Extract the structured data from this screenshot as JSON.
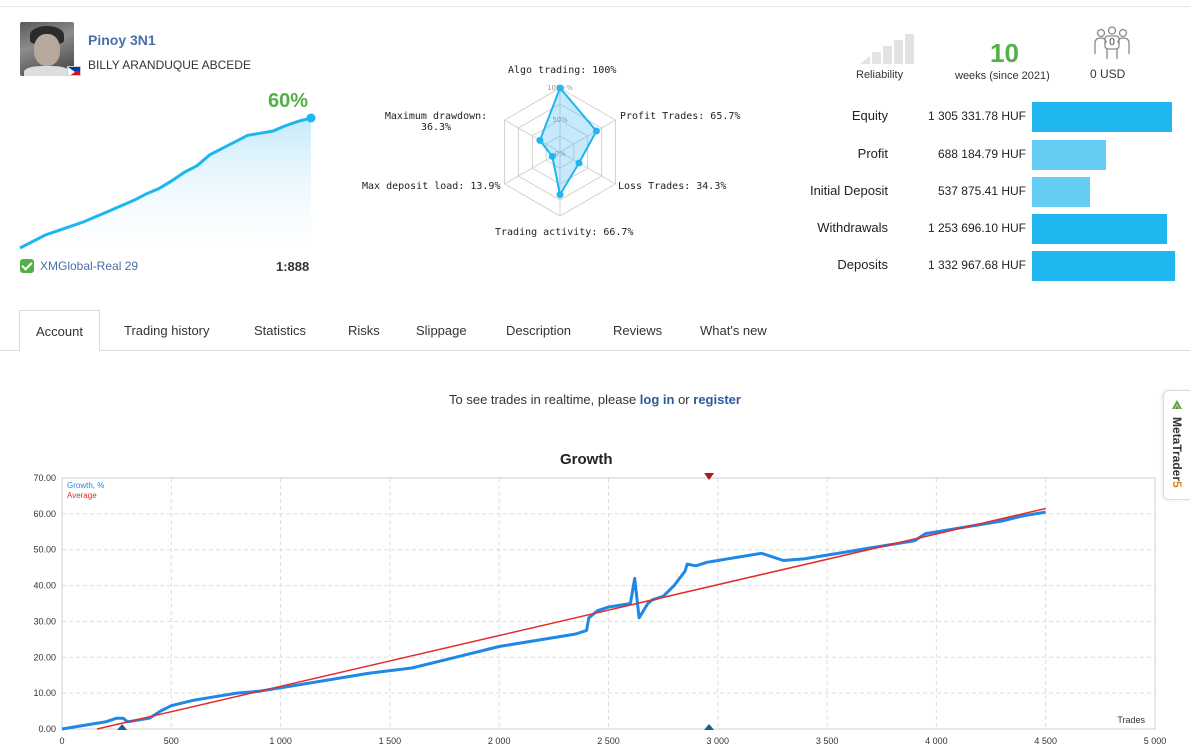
{
  "profile": {
    "signal_name": "Pinoy 3N1",
    "author": "BILLY ARANDUQUE ABCEDE",
    "growth_percent": "60%",
    "broker": "XMGlobal-Real 29",
    "leverage": "1:888",
    "mini_chart_values": [
      0,
      3,
      6,
      8,
      10,
      12,
      14.5,
      17,
      19.5,
      22,
      25,
      27.5,
      31,
      35,
      38,
      43,
      46,
      49,
      52,
      53,
      54,
      56.5,
      58.5,
      60
    ]
  },
  "radar": {
    "labels": {
      "algo": "Algo trading: 100%",
      "profit_trades": "Profit Trades: 65.7%",
      "loss_trades": "Loss Trades: 34.3%",
      "activity": "Trading activity: 66.7%",
      "deposit_load": "Max deposit load: 13.9%",
      "drawdown_line1": "Maximum drawdown:",
      "drawdown_line2": "36.3%"
    },
    "ring_labels": [
      "100+%",
      "50%",
      "0%"
    ],
    "values": [
      100,
      65.7,
      34.3,
      66.7,
      13.9,
      36.3
    ]
  },
  "header_stats": {
    "reliability_label": "Reliability",
    "weeks_value": "10",
    "weeks_label": "weeks (since 2021)",
    "subscribers_count": "0",
    "subscribers_usd": "0 USD"
  },
  "stats": [
    {
      "label": "Equity",
      "value": "1 305 331.78 HUF",
      "fraction": 0.979,
      "color": "#1fb6ef"
    },
    {
      "label": "Profit",
      "value": "688 184.79 HUF",
      "fraction": 0.516,
      "color": "#64cdf4"
    },
    {
      "label": "Initial Deposit",
      "value": "537 875.41 HUF",
      "fraction": 0.404,
      "color": "#64cdf4"
    },
    {
      "label": "Withdrawals",
      "value": "1 253 696.10 HUF",
      "fraction": 0.941,
      "color": "#1fb6ef"
    },
    {
      "label": "Deposits",
      "value": "1 332 967.68 HUF",
      "fraction": 1.0,
      "color": "#1fb6ef"
    }
  ],
  "tabs": [
    "Account",
    "Trading history",
    "Statistics",
    "Risks",
    "Slippage",
    "Description",
    "Reviews",
    "What's new"
  ],
  "notice": {
    "prefix": "To see trades in realtime, please ",
    "login": "log in",
    "middle": " or ",
    "register": "register"
  },
  "side_tab": {
    "text": "MetaTrader",
    "number": "5"
  },
  "chart_data": {
    "type": "line",
    "title": "Growth",
    "xlabel": "Trades",
    "ylabel": "",
    "xlim": [
      0,
      5000
    ],
    "ylim": [
      0,
      70
    ],
    "x_ticks": [
      "0",
      "500",
      "1 000",
      "1 500",
      "2 000",
      "2 500",
      "3 000",
      "3 500",
      "4 000",
      "4 500",
      "5 000"
    ],
    "y_ticks": [
      "0.00",
      "10.00",
      "20.00",
      "30.00",
      "40.00",
      "50.00",
      "60.00",
      "70.00"
    ],
    "legend_position": "top-left",
    "grid": true,
    "series": [
      {
        "name": "Growth, %",
        "color": "#1f87e6",
        "x": [
          0,
          100,
          200,
          250,
          280,
          300,
          400,
          450,
          500,
          600,
          700,
          800,
          900,
          1000,
          1200,
          1400,
          1600,
          1800,
          2000,
          2200,
          2350,
          2400,
          2410,
          2450,
          2500,
          2600,
          2620,
          2640,
          2660,
          2680,
          2700,
          2750,
          2800,
          2850,
          2860,
          2900,
          2950,
          3000,
          3050,
          3100,
          3200,
          3300,
          3400,
          3500,
          3600,
          3700,
          3800,
          3850,
          3900,
          3950,
          4000,
          4100,
          4200,
          4300,
          4400,
          4500
        ],
        "y": [
          0,
          1,
          2,
          3,
          3,
          2,
          3,
          5,
          6.5,
          8,
          9,
          10,
          10.5,
          11.5,
          13.5,
          15.5,
          17,
          20,
          23,
          25,
          26.5,
          27.5,
          31,
          33,
          34,
          35,
          42,
          31,
          33,
          35,
          36,
          37,
          40,
          44,
          46,
          45.5,
          46.5,
          47,
          47.5,
          48,
          49,
          47,
          47.5,
          48.5,
          49.5,
          50.5,
          51.5,
          52,
          52.5,
          54.5,
          55,
          56,
          57,
          58,
          59.5,
          60.5
        ]
      },
      {
        "name": "Average",
        "color": "#e52b2b",
        "x": [
          160,
          4500
        ],
        "y": [
          0,
          61.5
        ]
      }
    ],
    "markers": [
      {
        "x": 275,
        "y": 0,
        "color": "#1a5e8f"
      },
      {
        "x": 2960,
        "y": 0,
        "color": "#1a5e8f"
      },
      {
        "x": 2960,
        "y": 70,
        "color": "#b01a1a"
      }
    ]
  }
}
